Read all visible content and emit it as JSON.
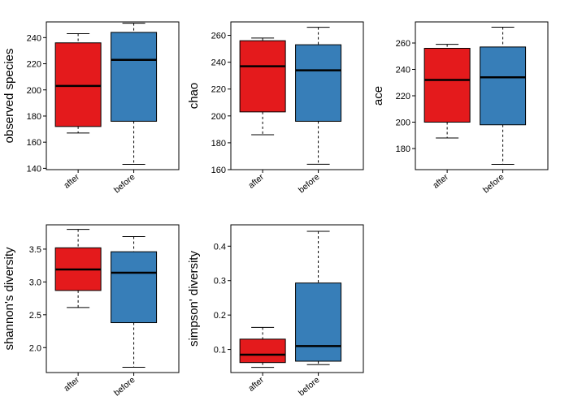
{
  "chart_data": [
    {
      "type": "boxplot",
      "ylabel": "observed species",
      "categories": [
        "after",
        "before"
      ],
      "ylim": [
        139,
        252
      ],
      "yticks": [
        140,
        160,
        180,
        200,
        220,
        240
      ],
      "boxes": [
        {
          "category": "after",
          "min": 167,
          "q1": 172,
          "median": 203,
          "q3": 236,
          "max": 243,
          "color": "#e41a1c"
        },
        {
          "category": "before",
          "min": 143,
          "q1": 176,
          "median": 223,
          "q3": 244,
          "max": 251,
          "color": "#377eb8"
        }
      ]
    },
    {
      "type": "boxplot",
      "ylabel": "chao",
      "categories": [
        "after",
        "before"
      ],
      "ylim": [
        160,
        270
      ],
      "yticks": [
        160,
        180,
        200,
        220,
        240,
        260
      ],
      "boxes": [
        {
          "category": "after",
          "min": 186,
          "q1": 203,
          "median": 237,
          "q3": 256,
          "max": 258,
          "color": "#e41a1c"
        },
        {
          "category": "before",
          "min": 164,
          "q1": 196,
          "median": 234,
          "q3": 253,
          "max": 266,
          "color": "#377eb8"
        }
      ]
    },
    {
      "type": "boxplot",
      "ylabel": "ace",
      "categories": [
        "after",
        "before"
      ],
      "ylim": [
        164,
        276
      ],
      "yticks": [
        180,
        200,
        220,
        240,
        260
      ],
      "boxes": [
        {
          "category": "after",
          "min": 188,
          "q1": 200,
          "median": 232,
          "q3": 256,
          "max": 259,
          "color": "#e41a1c"
        },
        {
          "category": "before",
          "min": 168,
          "q1": 198,
          "median": 234,
          "q3": 257,
          "max": 272,
          "color": "#377eb8"
        }
      ]
    },
    {
      "type": "boxplot",
      "ylabel": "shannon's diversity",
      "categories": [
        "after",
        "before"
      ],
      "ylim": [
        1.62,
        3.87
      ],
      "yticks": [
        2.0,
        2.5,
        3.0,
        3.5
      ],
      "yticklabels": [
        "2.0",
        "2.5",
        "3.0",
        "3.5"
      ],
      "boxes": [
        {
          "category": "after",
          "min": 2.61,
          "q1": 2.87,
          "median": 3.19,
          "q3": 3.52,
          "max": 3.8,
          "color": "#e41a1c"
        },
        {
          "category": "before",
          "min": 1.7,
          "q1": 2.38,
          "median": 3.14,
          "q3": 3.46,
          "max": 3.69,
          "color": "#377eb8"
        }
      ]
    },
    {
      "type": "boxplot",
      "ylabel": "simpson' diversity",
      "categories": [
        "after",
        "before"
      ],
      "ylim": [
        0.033,
        0.462
      ],
      "yticks": [
        0.1,
        0.2,
        0.3,
        0.4
      ],
      "yticklabels": [
        "0.1",
        "0.2",
        "0.3",
        "0.4"
      ],
      "boxes": [
        {
          "category": "after",
          "min": 0.048,
          "q1": 0.062,
          "median": 0.085,
          "q3": 0.13,
          "max": 0.164,
          "color": "#e41a1c"
        },
        {
          "category": "before",
          "min": 0.056,
          "q1": 0.066,
          "median": 0.11,
          "q3": 0.293,
          "max": 0.443,
          "color": "#377eb8"
        }
      ]
    }
  ]
}
